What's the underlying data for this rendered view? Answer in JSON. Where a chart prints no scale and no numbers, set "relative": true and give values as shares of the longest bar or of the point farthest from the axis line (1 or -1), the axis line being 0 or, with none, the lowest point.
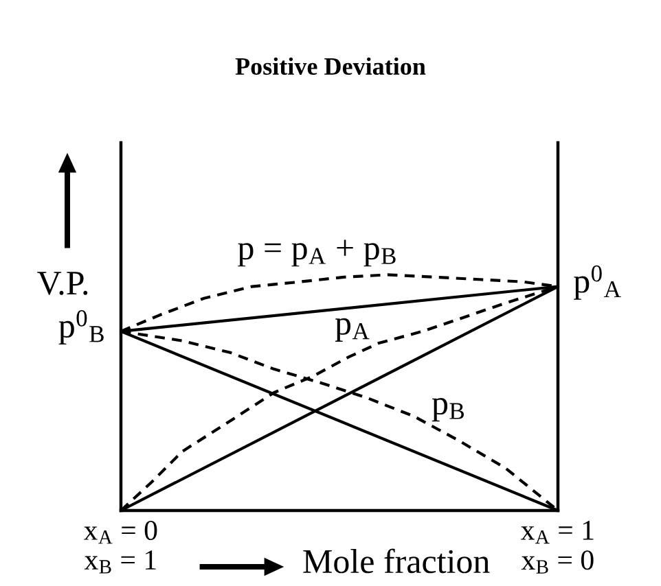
{
  "chart_data": {
    "type": "line",
    "title": "Positive Deviation",
    "xlabel": "Mole fraction",
    "ylabel": "V.P.",
    "relative": true,
    "xlim": [
      0,
      1
    ],
    "xticks": [
      {
        "value": 0,
        "label": "x$_{A}$ = 0"
      },
      {
        "value": 1,
        "label": "x$_{A}$ = 1"
      }
    ],
    "tick_labels": "x",
    "marker": "none",
    "series": [
      {
        "name": "p = p$_{A}$ + p$_{B}$",
        "color": "#000000",
        "line_style": "dashed",
        "x": [
          0,
          0.09,
          0.19,
          0.3,
          0.41,
          0.51,
          0.61,
          0.72,
          0.82,
          0.92,
          1
        ],
        "values": [
          0.76,
          0.83,
          0.9,
          0.95,
          0.97,
          0.99,
          1.0,
          0.99,
          0.98,
          0.97,
          0.95
        ]
      },
      {
        "name": "p$_{A}$",
        "color": "#000000",
        "line_style": "dashed",
        "x": [
          0,
          0.07,
          0.14,
          0.25,
          0.35,
          0.44,
          0.52,
          0.59,
          0.69,
          0.77,
          0.88,
          1
        ],
        "values": [
          0,
          0.12,
          0.25,
          0.38,
          0.5,
          0.57,
          0.65,
          0.71,
          0.76,
          0.81,
          0.88,
          0.95
        ]
      },
      {
        "name": "p$_{B}$",
        "color": "#000000",
        "line_style": "dashed",
        "x": [
          0,
          0.14,
          0.25,
          0.35,
          0.46,
          0.56,
          0.67,
          0.77,
          0.88,
          1
        ],
        "values": [
          0.76,
          0.72,
          0.67,
          0.6,
          0.54,
          0.48,
          0.4,
          0.3,
          0.18,
          0
        ]
      },
      {
        "color": "#000000",
        "line_style": "solid",
        "x": [
          0,
          1
        ],
        "values": [
          0.76,
          0.95
        ]
      },
      {
        "color": "#000000",
        "line_style": "solid",
        "x": [
          0,
          1
        ],
        "values": [
          0,
          0.95
        ]
      },
      {
        "color": "#000000",
        "line_style": "solid",
        "x": [
          0,
          1
        ],
        "values": [
          0.76,
          0
        ]
      }
    ],
    "annotations": [
      {
        "text": "p$^{0}$$_{B}$",
        "x": 0,
        "y": 0.76
      },
      {
        "text": "p$^{0}$$_{A}$",
        "x": 1,
        "y": 0.95
      },
      "x$_{B}$ = 1",
      "x$_{B}$ = 0"
    ]
  }
}
